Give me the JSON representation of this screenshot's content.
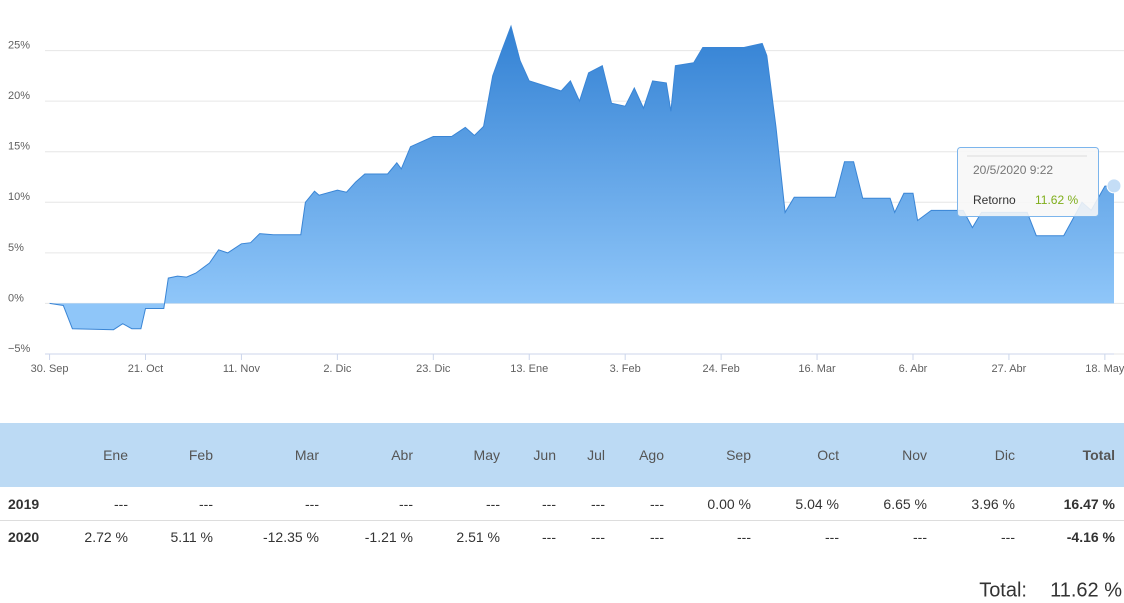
{
  "chart_data": {
    "type": "area",
    "x": [
      "2019-09-30",
      "2019-10-03",
      "2019-10-05",
      "2019-10-14",
      "2019-10-16",
      "2019-10-18",
      "2019-10-20",
      "2019-10-21",
      "2019-10-25",
      "2019-10-26",
      "2019-10-28",
      "2019-10-30",
      "2019-11-01",
      "2019-11-04",
      "2019-11-06",
      "2019-11-08",
      "2019-11-11",
      "2019-11-13",
      "2019-11-15",
      "2019-11-18",
      "2019-11-24",
      "2019-11-25",
      "2019-11-27",
      "2019-11-28",
      "2019-12-02",
      "2019-12-04",
      "2019-12-06",
      "2019-12-08",
      "2019-12-13",
      "2019-12-15",
      "2019-12-16",
      "2019-12-18",
      "2019-12-23",
      "2019-12-27",
      "2019-12-30",
      "2020-01-01",
      "2020-01-03",
      "2020-01-05",
      "2020-01-07",
      "2020-01-09",
      "2020-01-11",
      "2020-01-13",
      "2020-01-20",
      "2020-01-22",
      "2020-01-24",
      "2020-01-26",
      "2020-01-29",
      "2020-01-31",
      "2020-02-03",
      "2020-02-05",
      "2020-02-07",
      "2020-02-09",
      "2020-02-12",
      "2020-02-13",
      "2020-02-14",
      "2020-02-18",
      "2020-02-20",
      "2020-02-29",
      "2020-03-04",
      "2020-03-05",
      "2020-03-07",
      "2020-03-09",
      "2020-03-11",
      "2020-03-20",
      "2020-03-22",
      "2020-03-24",
      "2020-03-26",
      "2020-04-01",
      "2020-04-02",
      "2020-04-04",
      "2020-04-06",
      "2020-04-07",
      "2020-04-10",
      "2020-04-17",
      "2020-04-19",
      "2020-04-21",
      "2020-05-01",
      "2020-05-03",
      "2020-05-09",
      "2020-05-13",
      "2020-05-15",
      "2020-05-18",
      "2020-05-20"
    ],
    "series": [
      {
        "name": "Retorno",
        "color": "#3a85d5",
        "values": [
          0,
          -0.2,
          -2.5,
          -2.6,
          -2.0,
          -2.5,
          -2.5,
          -0.5,
          -0.5,
          2.5,
          2.7,
          2.6,
          3.0,
          4.0,
          5.3,
          5.0,
          5.9,
          6.0,
          6.9,
          6.8,
          6.8,
          10.0,
          11.1,
          10.7,
          11.2,
          11.0,
          12.0,
          12.8,
          12.8,
          13.9,
          13.3,
          15.5,
          16.5,
          16.5,
          17.4,
          16.6,
          17.5,
          22.5,
          25.0,
          27.4,
          24.0,
          22.0,
          21.0,
          22.0,
          20.0,
          22.8,
          23.5,
          19.8,
          19.5,
          21.3,
          19.3,
          22.0,
          21.8,
          19.0,
          23.5,
          23.8,
          25.3,
          25.3,
          25.7,
          24.5,
          17.5,
          9.0,
          10.5,
          10.5,
          14.0,
          14.0,
          10.4,
          10.4,
          9.0,
          10.9,
          10.9,
          8.2,
          9.2,
          9.2,
          7.5,
          9.0,
          9.0,
          6.7,
          6.7,
          10.0,
          9.2,
          11.6,
          11.62
        ]
      }
    ],
    "xlim": [
      "2019-09-29",
      "2020-05-20"
    ],
    "xticks": [
      {
        "value": "2019-09-30",
        "label": "30. Sep"
      },
      {
        "value": "2019-10-21",
        "label": "21. Oct"
      },
      {
        "value": "2019-11-11",
        "label": "11. Nov"
      },
      {
        "value": "2019-12-02",
        "label": "2. Dic"
      },
      {
        "value": "2019-12-23",
        "label": "23. Dic"
      },
      {
        "value": "2020-01-13",
        "label": "13. Ene"
      },
      {
        "value": "2020-02-03",
        "label": "3. Feb"
      },
      {
        "value": "2020-02-24",
        "label": "24. Feb"
      },
      {
        "value": "2020-03-16",
        "label": "16. Mar"
      },
      {
        "value": "2020-04-06",
        "label": "6. Abr"
      },
      {
        "value": "2020-04-27",
        "label": "27. Abr"
      },
      {
        "value": "2020-05-18",
        "label": "18. May"
      }
    ],
    "ylim": [
      -5,
      30
    ],
    "yticks": [
      {
        "value": -5,
        "label": "−5%"
      },
      {
        "value": 0,
        "label": "0%"
      },
      {
        "value": 5,
        "label": "5%"
      },
      {
        "value": 10,
        "label": "10%"
      },
      {
        "value": 15,
        "label": "15%"
      },
      {
        "value": 20,
        "label": "20%"
      },
      {
        "value": 25,
        "label": "25%"
      }
    ],
    "grid": true,
    "tooltip": {
      "title": "20/5/2020 9:22",
      "value_label": "11.62 %",
      "value_color": "#7fae1b"
    }
  },
  "table": {
    "columns": [
      "Ene",
      "Feb",
      "Mar",
      "Abr",
      "May",
      "Jun",
      "Jul",
      "Ago",
      "Sep",
      "Oct",
      "Nov",
      "Dic",
      "Total"
    ],
    "rows": [
      [
        "2019",
        "---",
        "---",
        "---",
        "---",
        "---",
        "---",
        "---",
        "---",
        "0.00 %",
        "5.04 %",
        "6.65 %",
        "3.96 %",
        "16.47 %"
      ],
      [
        "2020",
        "2.72 %",
        "5.11 %",
        "-12.35 %",
        "-1.21 %",
        "2.51 %",
        "---",
        "---",
        "---",
        "---",
        "---",
        "---",
        "---",
        "-4.16 %"
      ]
    ]
  },
  "summary": {
    "label": "Total:",
    "value": "11.62 %"
  }
}
